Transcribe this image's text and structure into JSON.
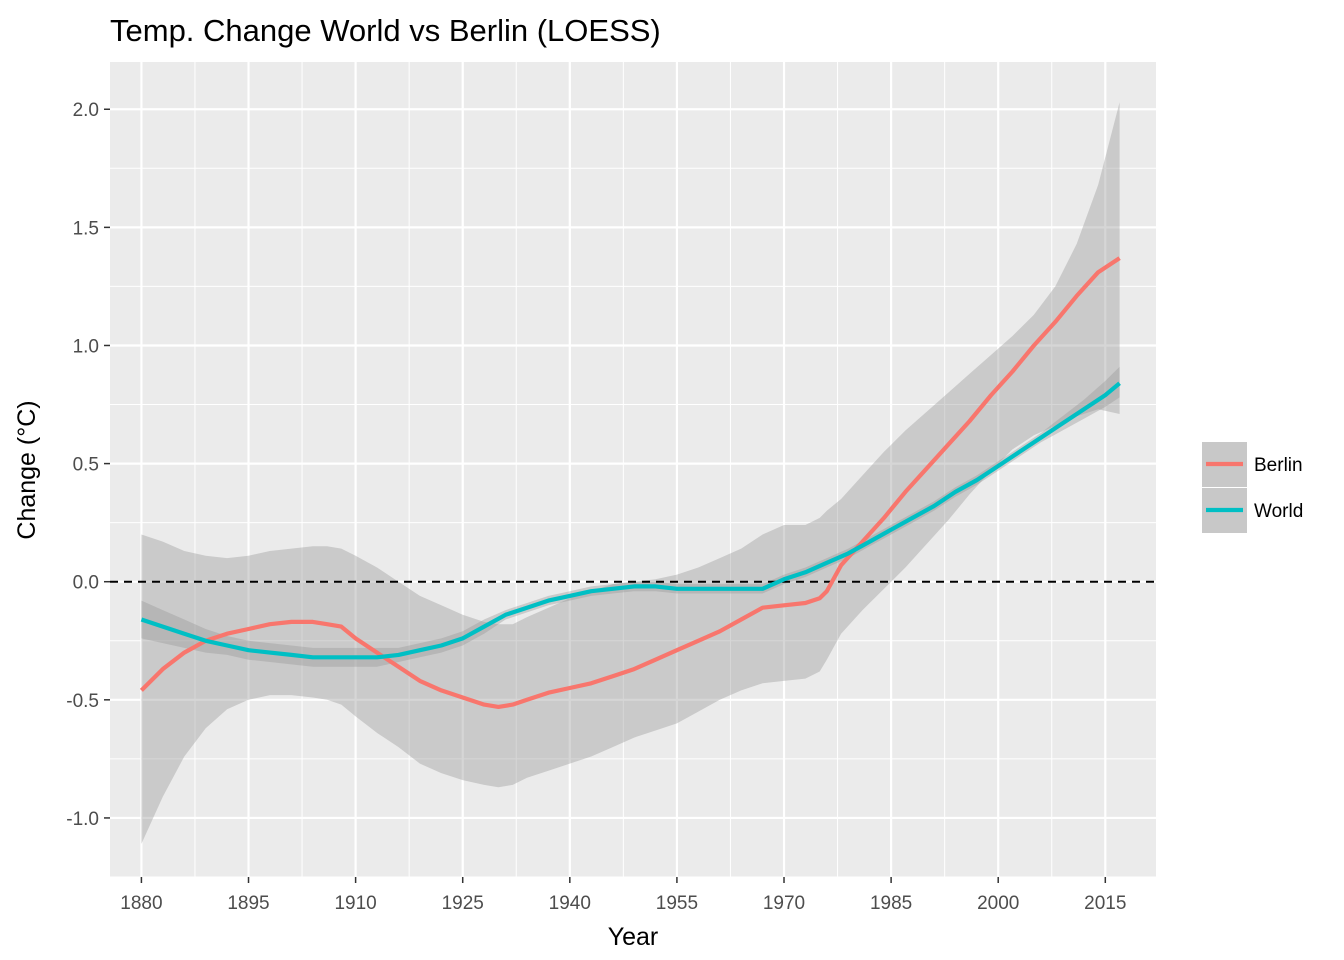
{
  "chart_data": {
    "type": "line",
    "title": "Temp. Change World vs Berlin (LOESS)",
    "xlabel": "Year",
    "ylabel": "Change (°C)",
    "xlim": [
      1875.6,
      2022.1
    ],
    "ylim": [
      -1.25,
      2.2
    ],
    "x_ticks": [
      1880,
      1895,
      1910,
      1925,
      1940,
      1955,
      1970,
      1985,
      2000,
      2015
    ],
    "x_tick_labels": [
      "1880",
      "1895",
      "1910",
      "1925",
      "1940",
      "1955",
      "1970",
      "1985",
      "2000",
      "2015"
    ],
    "y_ticks": [
      -1.0,
      -0.5,
      0.0,
      0.5,
      1.0,
      1.5,
      2.0
    ],
    "y_tick_labels": [
      "-1.0",
      "-0.5",
      "0.0",
      "0.5",
      "1.0",
      "1.5",
      "2.0"
    ],
    "grid": true,
    "legend_position": "right",
    "reference_line": {
      "y": 0,
      "style": "dashed",
      "color": "#000000"
    },
    "background_color": "#ebebeb",
    "band_color": "#999999",
    "series": [
      {
        "name": "Berlin",
        "color": "#F8766D",
        "x": [
          1880,
          1883,
          1886,
          1889,
          1892,
          1895,
          1898,
          1901,
          1904,
          1906,
          1908,
          1910,
          1913,
          1916,
          1919,
          1922,
          1925,
          1928,
          1930,
          1932,
          1934,
          1937,
          1940,
          1943,
          1946,
          1949,
          1952,
          1955,
          1958,
          1961,
          1964,
          1967,
          1970,
          1973,
          1975,
          1976,
          1978,
          1981,
          1984,
          1987,
          1990,
          1993,
          1996,
          1999,
          2002,
          2005,
          2008,
          2011,
          2014,
          2017
        ],
        "y": [
          -0.46,
          -0.37,
          -0.3,
          -0.25,
          -0.22,
          -0.2,
          -0.18,
          -0.17,
          -0.17,
          -0.18,
          -0.19,
          -0.24,
          -0.3,
          -0.36,
          -0.42,
          -0.46,
          -0.49,
          -0.52,
          -0.53,
          -0.52,
          -0.5,
          -0.47,
          -0.45,
          -0.43,
          -0.4,
          -0.37,
          -0.33,
          -0.29,
          -0.25,
          -0.21,
          -0.16,
          -0.11,
          -0.1,
          -0.09,
          -0.07,
          -0.04,
          0.07,
          0.17,
          0.27,
          0.38,
          0.48,
          0.58,
          0.68,
          0.79,
          0.89,
          1.0,
          1.1,
          1.21,
          1.31,
          1.37
        ],
        "ci_upper": [
          0.2,
          0.17,
          0.13,
          0.11,
          0.1,
          0.11,
          0.13,
          0.14,
          0.15,
          0.15,
          0.14,
          0.11,
          0.06,
          0.0,
          -0.06,
          -0.1,
          -0.14,
          -0.17,
          -0.18,
          -0.18,
          -0.15,
          -0.11,
          -0.07,
          -0.04,
          -0.01,
          0.0,
          0.01,
          0.03,
          0.06,
          0.1,
          0.14,
          0.2,
          0.24,
          0.24,
          0.27,
          0.3,
          0.35,
          0.45,
          0.55,
          0.64,
          0.72,
          0.8,
          0.88,
          0.96,
          1.04,
          1.13,
          1.25,
          1.43,
          1.68,
          2.03
        ],
        "ci_lower": [
          -1.11,
          -0.91,
          -0.74,
          -0.62,
          -0.54,
          -0.5,
          -0.48,
          -0.48,
          -0.49,
          -0.5,
          -0.52,
          -0.57,
          -0.64,
          -0.7,
          -0.77,
          -0.81,
          -0.84,
          -0.86,
          -0.87,
          -0.86,
          -0.83,
          -0.8,
          -0.77,
          -0.74,
          -0.7,
          -0.66,
          -0.63,
          -0.6,
          -0.55,
          -0.5,
          -0.46,
          -0.43,
          -0.42,
          -0.41,
          -0.38,
          -0.33,
          -0.22,
          -0.12,
          -0.03,
          0.06,
          0.16,
          0.26,
          0.37,
          0.47,
          0.56,
          0.62,
          0.66,
          0.7,
          0.73,
          0.71
        ]
      },
      {
        "name": "World",
        "color": "#00BFC4",
        "x": [
          1880,
          1883,
          1886,
          1889,
          1892,
          1895,
          1898,
          1901,
          1904,
          1907,
          1910,
          1913,
          1916,
          1919,
          1922,
          1925,
          1928,
          1931,
          1934,
          1937,
          1940,
          1943,
          1946,
          1949,
          1952,
          1955,
          1958,
          1961,
          1964,
          1967,
          1970,
          1973,
          1976,
          1979,
          1982,
          1985,
          1988,
          1991,
          1994,
          1997,
          2000,
          2003,
          2006,
          2009,
          2012,
          2015,
          2017
        ],
        "y": [
          -0.16,
          -0.19,
          -0.22,
          -0.25,
          -0.27,
          -0.29,
          -0.3,
          -0.31,
          -0.32,
          -0.32,
          -0.32,
          -0.32,
          -0.31,
          -0.29,
          -0.27,
          -0.24,
          -0.19,
          -0.14,
          -0.11,
          -0.08,
          -0.06,
          -0.04,
          -0.03,
          -0.02,
          -0.02,
          -0.03,
          -0.03,
          -0.03,
          -0.03,
          -0.03,
          0.01,
          0.04,
          0.08,
          0.12,
          0.17,
          0.22,
          0.27,
          0.32,
          0.38,
          0.43,
          0.49,
          0.55,
          0.61,
          0.67,
          0.73,
          0.79,
          0.84
        ],
        "ci_upper": [
          -0.08,
          -0.12,
          -0.16,
          -0.2,
          -0.23,
          -0.25,
          -0.26,
          -0.27,
          -0.28,
          -0.28,
          -0.28,
          -0.28,
          -0.28,
          -0.26,
          -0.24,
          -0.21,
          -0.16,
          -0.12,
          -0.09,
          -0.06,
          -0.04,
          -0.02,
          -0.01,
          0.0,
          0.0,
          -0.01,
          -0.01,
          -0.01,
          -0.01,
          -0.01,
          0.03,
          0.06,
          0.1,
          0.14,
          0.19,
          0.24,
          0.29,
          0.34,
          0.4,
          0.45,
          0.51,
          0.57,
          0.63,
          0.7,
          0.77,
          0.85,
          0.91
        ],
        "ci_lower": [
          -0.24,
          -0.26,
          -0.28,
          -0.3,
          -0.31,
          -0.33,
          -0.34,
          -0.35,
          -0.36,
          -0.36,
          -0.36,
          -0.36,
          -0.34,
          -0.32,
          -0.3,
          -0.27,
          -0.22,
          -0.16,
          -0.13,
          -0.1,
          -0.08,
          -0.06,
          -0.05,
          -0.04,
          -0.04,
          -0.05,
          -0.05,
          -0.05,
          -0.05,
          -0.05,
          -0.01,
          0.02,
          0.06,
          0.1,
          0.15,
          0.2,
          0.25,
          0.3,
          0.36,
          0.41,
          0.47,
          0.53,
          0.59,
          0.64,
          0.69,
          0.74,
          0.78
        ]
      }
    ]
  }
}
